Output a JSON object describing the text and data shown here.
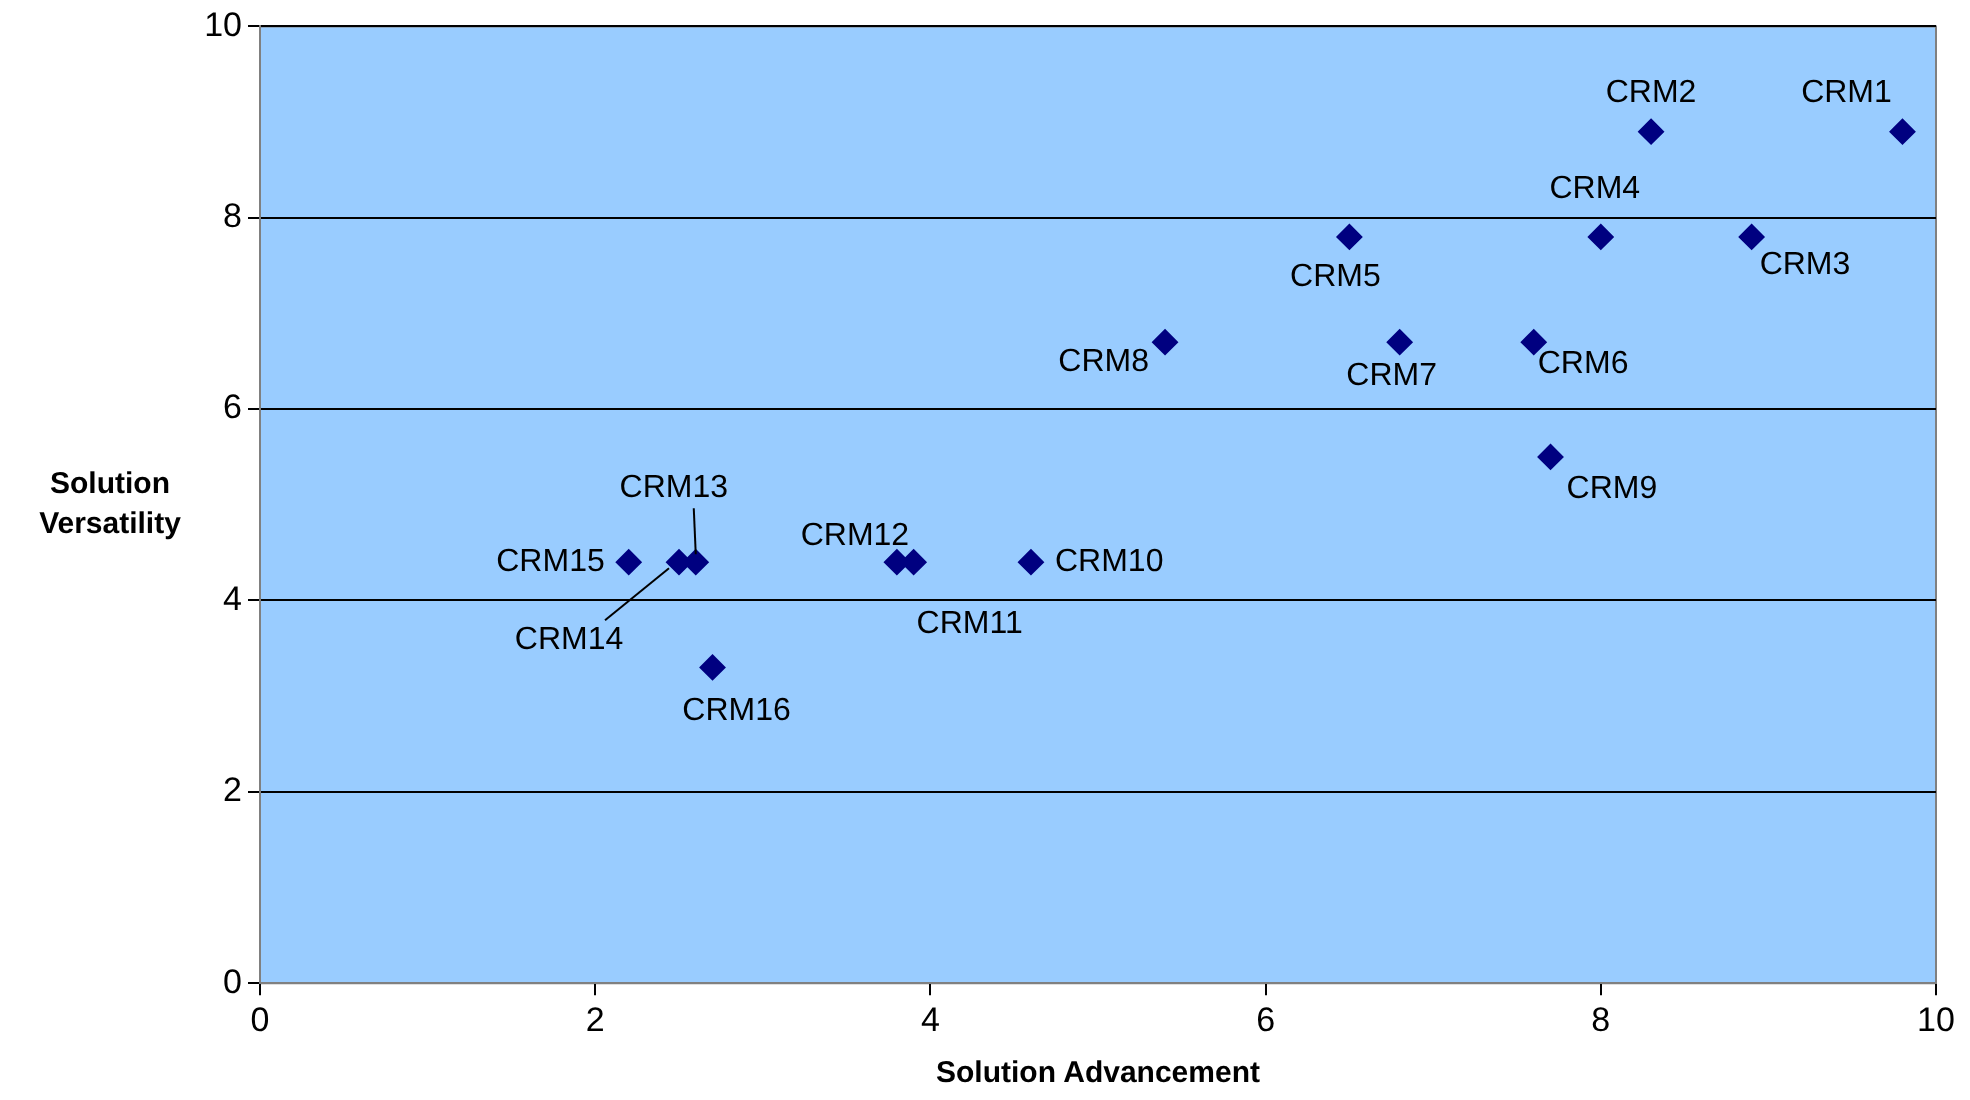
{
  "chart_data": {
    "type": "scatter",
    "xlabel": "Solution Advancement",
    "ylabel": "Solution Versatility",
    "x": [
      9.8,
      8.3,
      8.9,
      8.0,
      6.5,
      7.6,
      6.8,
      5.4,
      7.7,
      4.6,
      3.9,
      3.8,
      2.6,
      2.5,
      2.2,
      2.7
    ],
    "values": [
      8.9,
      8.9,
      7.8,
      7.8,
      7.8,
      6.7,
      6.7,
      6.7,
      5.5,
      4.4,
      4.4,
      4.4,
      4.4,
      4.4,
      4.4,
      3.3
    ],
    "color": "#000080",
    "marker": "diamond",
    "xlim": [
      0,
      10
    ],
    "ylim": [
      0,
      10
    ],
    "xticks": [
      0,
      2,
      4,
      6,
      8,
      10
    ],
    "yticks": [
      0,
      2,
      4,
      6,
      8,
      10
    ],
    "grid": "y",
    "annotations": [
      {
        "text": "CRM1",
        "x": 9.8,
        "y": 8.9
      },
      {
        "text": "CRM2",
        "x": 8.3,
        "y": 8.9
      },
      {
        "text": "CRM3",
        "x": 8.9,
        "y": 7.8
      },
      {
        "text": "CRM4",
        "x": 8.0,
        "y": 7.8
      },
      {
        "text": "CRM5",
        "x": 6.5,
        "y": 7.8
      },
      {
        "text": "CRM6",
        "x": 7.6,
        "y": 6.7
      },
      {
        "text": "CRM7",
        "x": 6.8,
        "y": 6.7
      },
      {
        "text": "CRM8",
        "x": 5.4,
        "y": 6.7
      },
      {
        "text": "CRM9",
        "x": 7.7,
        "y": 5.5
      },
      {
        "text": "CRM10",
        "x": 4.6,
        "y": 4.4
      },
      {
        "text": "CRM11",
        "x": 3.9,
        "y": 4.4
      },
      {
        "text": "CRM12",
        "x": 3.8,
        "y": 4.4
      },
      {
        "text": "CRM13",
        "x": 2.6,
        "y": 4.4
      },
      {
        "text": "CRM14",
        "x": 2.5,
        "y": 4.4
      },
      {
        "text": "CRM15",
        "x": 2.2,
        "y": 4.4
      },
      {
        "text": "CRM16",
        "x": 2.7,
        "y": 3.3
      }
    ]
  }
}
